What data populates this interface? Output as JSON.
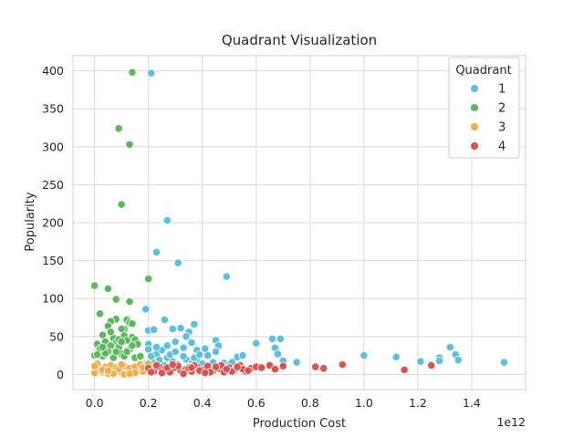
{
  "chart_data": {
    "type": "scatter",
    "title": "Quadrant Visualization",
    "xlabel": "Production Cost",
    "ylabel": "Popularity",
    "x_offset_label": "1e12",
    "xlim": [
      -0.08,
      1.6
    ],
    "ylim": [
      -20,
      420
    ],
    "x_ticks": [
      0.0,
      0.2,
      0.4,
      0.6,
      0.8,
      1.0,
      1.2,
      1.4
    ],
    "x_tick_labels": [
      "0.0",
      "0.2",
      "0.4",
      "0.6",
      "0.8",
      "1.0",
      "1.2",
      "1.4"
    ],
    "y_ticks": [
      0,
      50,
      100,
      150,
      200,
      250,
      300,
      350,
      400
    ],
    "y_tick_labels": [
      "0",
      "50",
      "100",
      "150",
      "200",
      "250",
      "300",
      "350",
      "400"
    ],
    "grid": true,
    "legend": {
      "title": "Quadrant",
      "placement": "top-right"
    },
    "series": [
      {
        "name": "1",
        "color": "#5bc0de",
        "points": [
          [
            0.21,
            397
          ],
          [
            0.27,
            203
          ],
          [
            0.23,
            161
          ],
          [
            0.31,
            147
          ],
          [
            0.49,
            129
          ],
          [
            0.19,
            86
          ],
          [
            0.26,
            72
          ],
          [
            0.2,
            58
          ],
          [
            0.22,
            59
          ],
          [
            0.29,
            60
          ],
          [
            0.32,
            61
          ],
          [
            0.35,
            56
          ],
          [
            0.37,
            66
          ],
          [
            0.34,
            50
          ],
          [
            0.36,
            42
          ],
          [
            0.3,
            43
          ],
          [
            0.33,
            35
          ],
          [
            0.38,
            32
          ],
          [
            0.41,
            34
          ],
          [
            0.45,
            45
          ],
          [
            0.46,
            38
          ],
          [
            0.45,
            30
          ],
          [
            0.42,
            25
          ],
          [
            0.53,
            23
          ],
          [
            0.55,
            25
          ],
          [
            0.6,
            41
          ],
          [
            0.66,
            47
          ],
          [
            0.67,
            35
          ],
          [
            0.69,
            47
          ],
          [
            0.68,
            27
          ],
          [
            0.7,
            18
          ],
          [
            0.75,
            16
          ],
          [
            1.0,
            25
          ],
          [
            1.12,
            23
          ],
          [
            1.21,
            17
          ],
          [
            1.28,
            22
          ],
          [
            1.28,
            18
          ],
          [
            1.32,
            36
          ],
          [
            1.34,
            26
          ],
          [
            1.35,
            19
          ],
          [
            1.52,
            16
          ],
          [
            0.2,
            40
          ],
          [
            0.2,
            33
          ],
          [
            0.23,
            27
          ],
          [
            0.25,
            32
          ],
          [
            0.27,
            22
          ],
          [
            0.29,
            17
          ],
          [
            0.31,
            13
          ],
          [
            0.24,
            19
          ],
          [
            0.21,
            24
          ],
          [
            0.22,
            15
          ],
          [
            0.26,
            12
          ],
          [
            0.34,
            20
          ],
          [
            0.36,
            14
          ],
          [
            0.38,
            18
          ],
          [
            0.4,
            14
          ],
          [
            0.44,
            16
          ],
          [
            0.48,
            15
          ],
          [
            0.5,
            13
          ],
          [
            0.51,
            16
          ],
          [
            0.28,
            26
          ],
          [
            0.33,
            24
          ],
          [
            0.3,
            30
          ],
          [
            0.37,
            22
          ],
          [
            0.39,
            26
          ],
          [
            0.35,
            10
          ],
          [
            0.19,
            14
          ],
          [
            0.23,
            36
          ],
          [
            0.27,
            38
          ]
        ]
      },
      {
        "name": "2",
        "color": "#5cb85c",
        "points": [
          [
            0.14,
            398
          ],
          [
            0.09,
            324
          ],
          [
            0.13,
            303
          ],
          [
            0.1,
            224
          ],
          [
            0.2,
            126
          ],
          [
            0.0,
            117
          ],
          [
            0.05,
            113
          ],
          [
            0.08,
            99
          ],
          [
            0.13,
            96
          ],
          [
            0.02,
            80
          ],
          [
            0.08,
            73
          ],
          [
            0.12,
            72
          ],
          [
            0.06,
            70
          ],
          [
            0.11,
            60
          ],
          [
            0.13,
            68
          ],
          [
            0.14,
            67
          ],
          [
            0.05,
            64
          ],
          [
            0.1,
            60
          ],
          [
            0.03,
            52
          ],
          [
            0.07,
            48
          ],
          [
            0.11,
            51
          ],
          [
            0.14,
            49
          ],
          [
            0.04,
            43
          ],
          [
            0.08,
            42
          ],
          [
            0.01,
            40
          ],
          [
            0.12,
            45
          ],
          [
            0.15,
            46
          ],
          [
            0.06,
            38
          ],
          [
            0.09,
            36
          ],
          [
            0.02,
            30
          ],
          [
            0.13,
            33
          ],
          [
            0.05,
            30
          ],
          [
            0.1,
            27
          ],
          [
            0.0,
            25
          ],
          [
            0.03,
            24
          ],
          [
            0.07,
            22
          ],
          [
            0.11,
            24
          ],
          [
            0.15,
            22
          ],
          [
            0.16,
            40
          ],
          [
            0.04,
            28
          ],
          [
            0.09,
            46
          ],
          [
            0.02,
            34
          ],
          [
            0.06,
            56
          ],
          [
            0.1,
            43
          ],
          [
            0.12,
            30
          ],
          [
            0.14,
            38
          ],
          [
            0.01,
            26
          ],
          [
            0.08,
            30
          ],
          [
            0.17,
            24
          ],
          [
            0.03,
            36
          ]
        ]
      },
      {
        "name": "3",
        "color": "#f0ad4e",
        "points": [
          [
            0.0,
            2
          ],
          [
            0.03,
            3
          ],
          [
            0.05,
            1
          ],
          [
            0.07,
            4
          ],
          [
            0.1,
            2
          ],
          [
            0.12,
            5
          ],
          [
            0.14,
            3
          ],
          [
            0.16,
            6
          ],
          [
            0.18,
            4
          ],
          [
            0.02,
            8
          ],
          [
            0.04,
            10
          ],
          [
            0.06,
            12
          ],
          [
            0.08,
            9
          ],
          [
            0.11,
            11
          ],
          [
            0.13,
            8
          ],
          [
            0.15,
            10
          ],
          [
            0.17,
            13
          ],
          [
            0.19,
            12
          ],
          [
            0.01,
            14
          ],
          [
            0.09,
            7
          ],
          [
            0.03,
            6
          ],
          [
            0.07,
            1
          ],
          [
            0.11,
            0
          ],
          [
            0.15,
            2
          ],
          [
            0.05,
            5
          ],
          [
            0.13,
            1
          ],
          [
            0.18,
            9
          ],
          [
            0.2,
            14
          ],
          [
            0.0,
            11
          ],
          [
            0.1,
            13
          ]
        ]
      },
      {
        "name": "4",
        "color": "#d9534f",
        "points": [
          [
            0.2,
            8
          ],
          [
            0.22,
            4
          ],
          [
            0.24,
            10
          ],
          [
            0.26,
            6
          ],
          [
            0.28,
            3
          ],
          [
            0.3,
            9
          ],
          [
            0.32,
            5
          ],
          [
            0.34,
            7
          ],
          [
            0.36,
            4
          ],
          [
            0.38,
            10
          ],
          [
            0.4,
            6
          ],
          [
            0.42,
            11
          ],
          [
            0.44,
            5
          ],
          [
            0.46,
            8
          ],
          [
            0.48,
            3
          ],
          [
            0.5,
            9
          ],
          [
            0.52,
            6
          ],
          [
            0.54,
            12
          ],
          [
            0.56,
            4
          ],
          [
            0.58,
            8
          ],
          [
            0.6,
            10
          ],
          [
            0.65,
            12
          ],
          [
            0.7,
            11
          ],
          [
            0.82,
            10
          ],
          [
            0.85,
            8
          ],
          [
            0.92,
            13
          ],
          [
            1.15,
            6
          ],
          [
            1.25,
            12
          ],
          [
            0.23,
            12
          ],
          [
            0.27,
            9
          ],
          [
            0.31,
            11
          ],
          [
            0.35,
            8
          ],
          [
            0.39,
            5
          ],
          [
            0.43,
            3
          ],
          [
            0.47,
            12
          ],
          [
            0.51,
            4
          ],
          [
            0.55,
            7
          ],
          [
            0.25,
            2
          ],
          [
            0.33,
            1
          ],
          [
            0.41,
            2
          ],
          [
            0.37,
            12
          ],
          [
            0.45,
            10
          ],
          [
            0.29,
            13
          ],
          [
            0.21,
            3
          ],
          [
            0.62,
            9
          ],
          [
            0.67,
            7
          ],
          [
            0.53,
            10
          ],
          [
            0.57,
            5
          ],
          [
            0.36,
            9
          ],
          [
            0.49,
            7
          ]
        ]
      }
    ]
  }
}
